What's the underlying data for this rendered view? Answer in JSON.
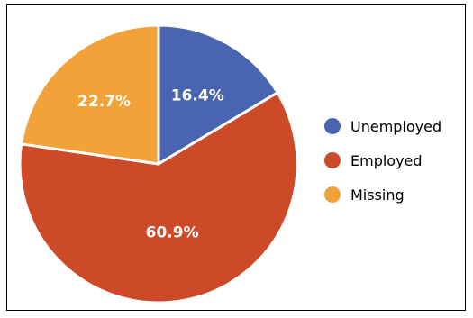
{
  "chart_data": {
    "type": "pie",
    "title": "",
    "slices": [
      {
        "label": "Unemployed",
        "value": 16.4,
        "display": "16.4%",
        "color": "#4964b0"
      },
      {
        "label": "Employed",
        "value": 60.9,
        "display": "60.9%",
        "color": "#cd4a28"
      },
      {
        "label": "Missing",
        "value": 22.7,
        "display": "22.7%",
        "color": "#f1a33a"
      }
    ],
    "start_angle": "12 o'clock",
    "direction": "clockwise",
    "legend_position": "right"
  }
}
